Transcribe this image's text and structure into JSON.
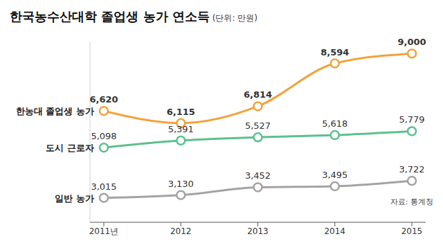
{
  "chart_data": {
    "type": "line",
    "title": "한국농수산대학 졸업생 농가 연소득",
    "subtitle": "(단위: 만원)",
    "annotations": [
      "자료: 통계청"
    ],
    "categories": [
      "2011년",
      "2012",
      "2013",
      "2014",
      "2015"
    ],
    "series": [
      {
        "name": "한농대 졸업생 농가",
        "color": "#f3a23a",
        "marker": "circle",
        "values": [
          6620,
          6115,
          6814,
          8594,
          9000
        ],
        "value_labels": [
          "6,620",
          "6,115",
          "6,814",
          "8,594",
          "9,000"
        ]
      },
      {
        "name": "도시 근로자",
        "color": "#5cc08e",
        "marker": "circle",
        "values": [
          5098,
          5391,
          5527,
          5618,
          5779
        ],
        "value_labels": [
          "5,098",
          "5,391",
          "5,527",
          "5,618",
          "5,779"
        ]
      },
      {
        "name": "일반 농가",
        "color": "#a3a3a3",
        "marker": "circle",
        "values": [
          3015,
          3130,
          3452,
          3495,
          3722
        ],
        "value_labels": [
          "3,015",
          "3,130",
          "3,452",
          "3,495",
          "3,722"
        ]
      }
    ],
    "ylim": [
      2000,
      9500
    ],
    "grid": false,
    "data_labels": true,
    "tick_labels": "x"
  }
}
